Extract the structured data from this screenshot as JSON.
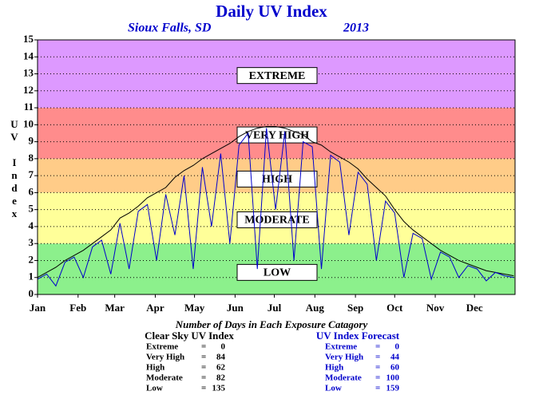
{
  "chart_data": {
    "type": "line",
    "title": "Daily UV Index",
    "subtitle": "Sioux Falls, SD",
    "year": "2013",
    "y_label": "UV Index",
    "xlim": [
      0,
      365
    ],
    "ylim": [
      0,
      15
    ],
    "yticks": [
      0,
      1,
      2,
      3,
      4,
      5,
      6,
      7,
      8,
      9,
      10,
      11,
      12,
      13,
      14,
      15
    ],
    "xticks": [
      {
        "value": 0,
        "label": "Jan"
      },
      {
        "value": 31,
        "label": "Feb"
      },
      {
        "value": 59,
        "label": "Mar"
      },
      {
        "value": 90,
        "label": "Apr"
      },
      {
        "value": 120,
        "label": "May"
      },
      {
        "value": 151,
        "label": "Jun"
      },
      {
        "value": 181,
        "label": "Jul"
      },
      {
        "value": 212,
        "label": "Aug"
      },
      {
        "value": 243,
        "label": "Sep"
      },
      {
        "value": 273,
        "label": "Oct"
      },
      {
        "value": 304,
        "label": "Nov"
      },
      {
        "value": 334,
        "label": "Dec"
      }
    ],
    "grid": true,
    "bands": [
      {
        "label": "LOW",
        "from": 0,
        "to": 3,
        "color": "#8cf08c",
        "label_at": 1.3
      },
      {
        "label": "MODERATE",
        "from": 3,
        "to": 6,
        "color": "#ffff99",
        "label_at": 4.4
      },
      {
        "label": "HIGH",
        "from": 6,
        "to": 8,
        "color": "#ffcc88",
        "label_at": 6.8
      },
      {
        "label": "VERY HIGH",
        "from": 8,
        "to": 11,
        "color": "#ff8c8c",
        "label_at": 9.4
      },
      {
        "label": "EXTREME",
        "from": 11,
        "to": 15,
        "color": "#dd99ff",
        "label_at": 12.9
      }
    ],
    "x": [
      0,
      7,
      14,
      21,
      28,
      35,
      42,
      49,
      56,
      63,
      70,
      77,
      84,
      91,
      98,
      105,
      112,
      119,
      126,
      133,
      140,
      147,
      154,
      161,
      168,
      175,
      182,
      189,
      196,
      203,
      210,
      217,
      224,
      231,
      238,
      245,
      252,
      259,
      266,
      273,
      280,
      287,
      294,
      301,
      308,
      315,
      322,
      329,
      336,
      343,
      350,
      357,
      364
    ],
    "series": [
      {
        "name": "Clear Sky UV Index",
        "color": "#000000",
        "values": [
          1.0,
          1.3,
          1.6,
          2.0,
          2.3,
          2.6,
          3.0,
          3.4,
          3.8,
          4.5,
          4.8,
          5.2,
          5.7,
          6.0,
          6.3,
          6.9,
          7.3,
          7.6,
          8.0,
          8.3,
          8.6,
          8.9,
          9.3,
          9.6,
          9.8,
          9.9,
          9.9,
          9.8,
          9.6,
          9.4,
          9.0,
          8.8,
          8.4,
          8.1,
          7.8,
          7.4,
          6.8,
          6.3,
          5.8,
          5.0,
          4.3,
          3.8,
          3.4,
          3.0,
          2.6,
          2.3,
          2.0,
          1.8,
          1.6,
          1.4,
          1.3,
          1.2,
          1.1
        ]
      },
      {
        "name": "UV Index Forecast",
        "color": "#0000cc",
        "values": [
          0.9,
          1.2,
          0.5,
          1.9,
          2.2,
          1.0,
          2.8,
          3.2,
          1.2,
          4.2,
          1.5,
          4.9,
          5.3,
          2.0,
          5.9,
          3.5,
          7.0,
          1.5,
          7.5,
          4.0,
          8.3,
          3.0,
          8.8,
          9.5,
          1.5,
          9.8,
          5.0,
          9.6,
          2.0,
          9.0,
          8.7,
          1.5,
          8.2,
          7.8,
          3.5,
          7.2,
          6.5,
          2.0,
          5.5,
          4.8,
          1.0,
          3.6,
          3.3,
          0.9,
          2.5,
          2.2,
          1.0,
          1.7,
          1.5,
          0.8,
          1.3,
          1.1,
          1.0
        ]
      }
    ],
    "summary": {
      "title": "Number of Days in Each Exposure Catagory",
      "separator": "=",
      "tables": [
        {
          "title": "Clear Sky UV Index",
          "color": "#000000",
          "rows": [
            {
              "label": "Extreme",
              "value": 0
            },
            {
              "label": "Very High",
              "value": 84
            },
            {
              "label": "High",
              "value": 62
            },
            {
              "label": "Moderate",
              "value": 82
            },
            {
              "label": "Low",
              "value": 135
            }
          ]
        },
        {
          "title": "UV Index Forecast",
          "color": "#0000cc",
          "rows": [
            {
              "label": "Extreme",
              "value": 0
            },
            {
              "label": "Very High",
              "value": 44
            },
            {
              "label": "High",
              "value": 60
            },
            {
              "label": "Moderate",
              "value": 100
            },
            {
              "label": "Low",
              "value": 159
            }
          ]
        }
      ]
    }
  }
}
